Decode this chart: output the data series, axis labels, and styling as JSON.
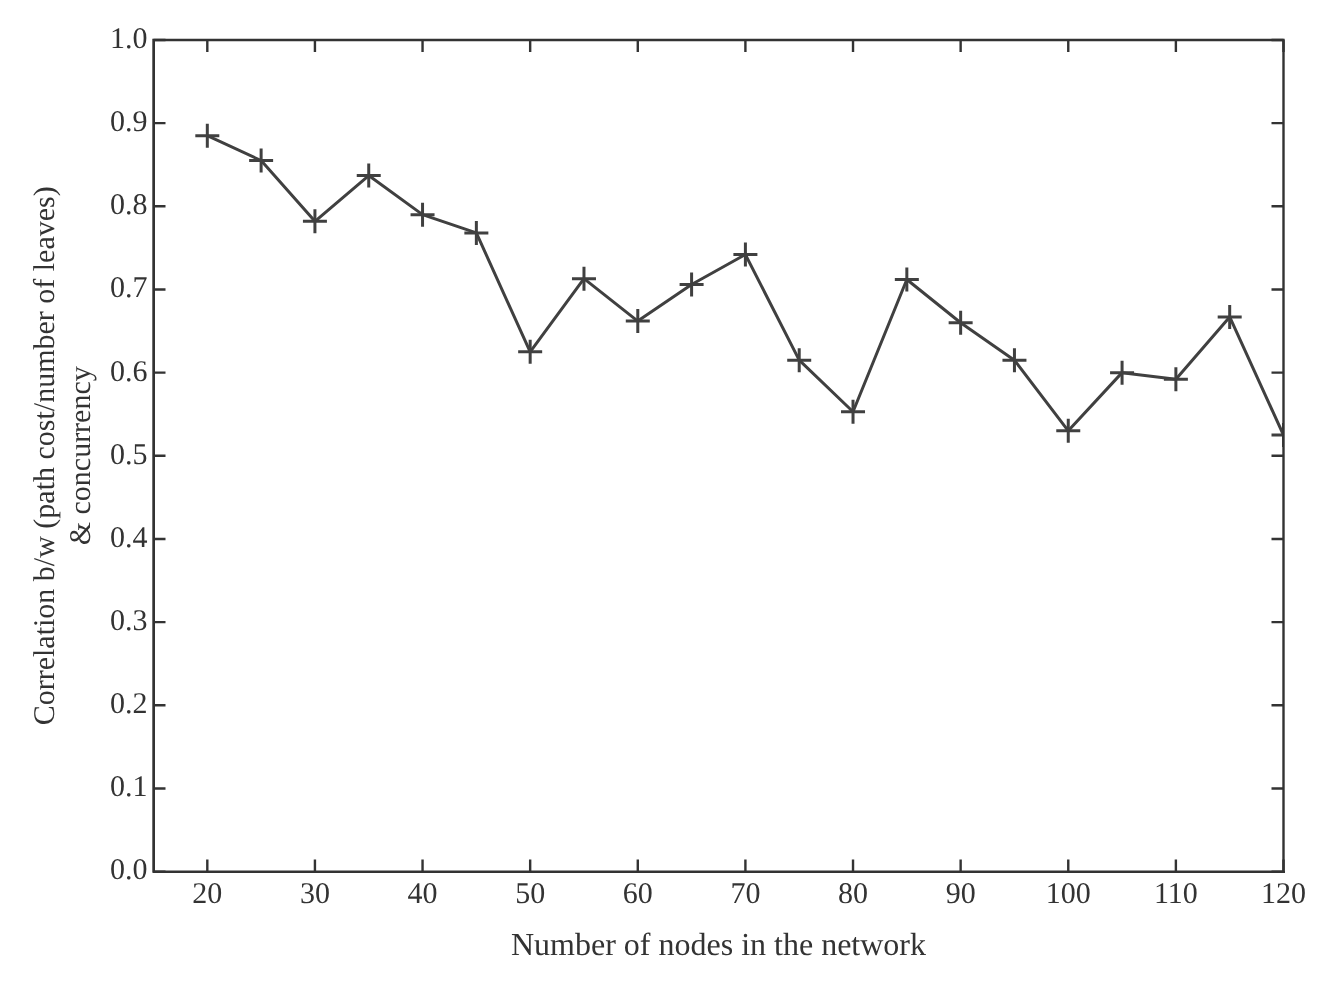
{
  "chart_data": {
    "type": "line",
    "xlabel": "Number of nodes in the network",
    "ylabel": "Correlation b/w (path cost/number of leaves)\n& concurrency",
    "x": [
      20,
      25,
      30,
      35,
      40,
      45,
      50,
      55,
      60,
      65,
      70,
      75,
      80,
      85,
      90,
      95,
      100,
      105,
      110,
      115,
      120
    ],
    "series": [
      {
        "color": "#404040",
        "values": [
          0.885,
          0.855,
          0.782,
          0.837,
          0.79,
          0.768,
          0.625,
          0.713,
          0.662,
          0.706,
          0.742,
          0.615,
          0.553,
          0.712,
          0.66,
          0.615,
          0.53,
          0.6,
          0.592,
          0.667,
          0.525
        ]
      }
    ],
    "xlim": [
      15,
      120
    ],
    "xticks": [
      20,
      30,
      40,
      50,
      60,
      70,
      80,
      90,
      100,
      110,
      120
    ],
    "ylim": [
      0,
      1
    ],
    "yticks": [
      {
        "value": 0,
        "label": "0.0"
      },
      {
        "value": 0.1,
        "label": "0.1"
      },
      {
        "value": 0.2,
        "label": "0.2"
      },
      {
        "value": 0.3,
        "label": "0.3"
      },
      {
        "value": 0.4,
        "label": "0.4"
      },
      {
        "value": 0.5,
        "label": "0.5"
      },
      {
        "value": 0.6,
        "label": "0.6"
      },
      {
        "value": 0.7,
        "label": "0.7"
      },
      {
        "value": 0.8,
        "label": "0.8"
      },
      {
        "value": 0.9,
        "label": "0.9"
      },
      {
        "value": 1,
        "label": "1.0"
      }
    ],
    "marker": "cross",
    "line_style": "solid",
    "grid": false,
    "legend": false
  }
}
